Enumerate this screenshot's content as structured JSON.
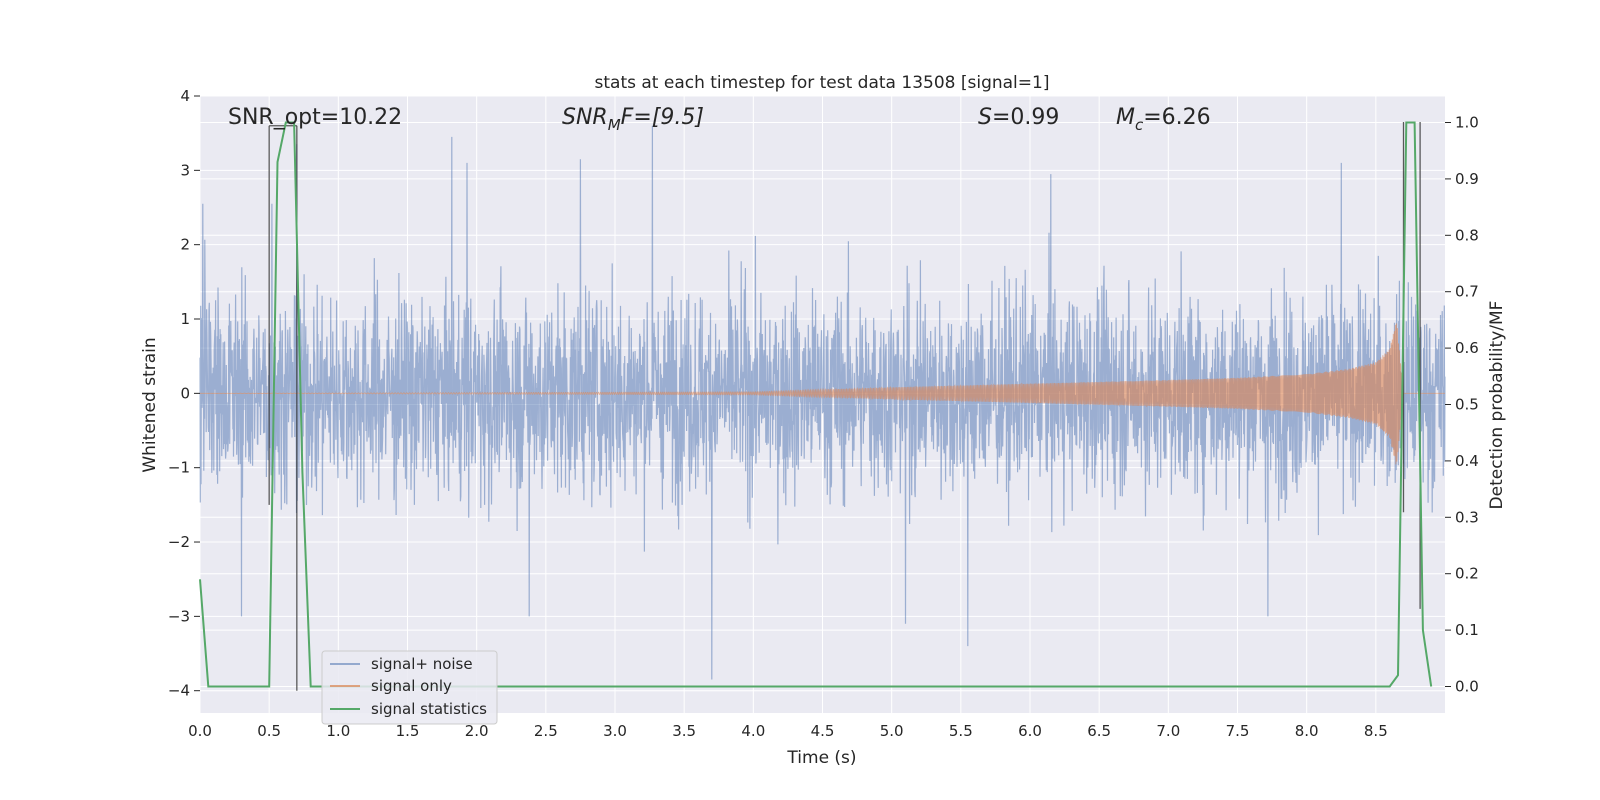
{
  "chart_data": {
    "type": "line",
    "title": "stats at each timestep for test data 13508 [signal=1]",
    "xlabel": "Time (s)",
    "ylabel": "Whitened strain",
    "y2label": "Detection probability/MF",
    "xlim": [
      0.0,
      9.0
    ],
    "ylim": [
      -4.3,
      4.0
    ],
    "y2lim": [
      -0.047,
      1.047
    ],
    "x_ticks": [
      "0.0",
      "0.5",
      "1.0",
      "1.5",
      "2.0",
      "2.5",
      "3.0",
      "3.5",
      "4.0",
      "4.5",
      "5.0",
      "5.5",
      "6.0",
      "6.5",
      "7.0",
      "7.5",
      "8.0",
      "8.5"
    ],
    "y_ticks": [
      "4",
      "3",
      "2",
      "1",
      "0",
      "−1",
      "−2",
      "−3",
      "−4"
    ],
    "y2_ticks": [
      "1.0",
      "0.9",
      "0.8",
      "0.7",
      "0.6",
      "0.5",
      "0.4",
      "0.3",
      "0.2",
      "0.1",
      "0.0"
    ],
    "grid": true,
    "legend_position": "lower-left",
    "annotations": {
      "snr_opt": "SNR_opt=10.22",
      "snr_mf_sym": "SNR",
      "snr_mf_sub": "M",
      "snr_mf_rest": "F=[9.5]",
      "s_sym": "S",
      "s_rest": "=0.99",
      "mc_sym": "M",
      "mc_sub": "c",
      "mc_rest": "=6.26"
    },
    "series": [
      {
        "name": "signal+ noise",
        "color": "#4c72b0",
        "axis": "left",
        "kind": "noise",
        "amplitude_envelope": 1.3,
        "peak_values": [
          [
            0.02,
            2.55
          ],
          [
            0.52,
            2.55
          ],
          [
            0.7,
            3.35
          ],
          [
            1.82,
            3.45
          ],
          [
            1.93,
            3.1
          ],
          [
            2.75,
            3.15
          ],
          [
            3.27,
            3.6
          ],
          [
            3.7,
            -3.85
          ],
          [
            5.1,
            -3.1
          ],
          [
            5.55,
            -3.4
          ],
          [
            6.15,
            2.95
          ],
          [
            7.72,
            -3.0
          ],
          [
            8.25,
            3.1
          ],
          [
            0.3,
            -3.0
          ],
          [
            2.38,
            -3.0
          ]
        ]
      },
      {
        "name": "signal only",
        "color": "#dd8452",
        "axis": "left",
        "kind": "chirp",
        "amplitude_x": [
          0.0,
          4.0,
          5.0,
          6.0,
          7.0,
          7.5,
          8.0,
          8.3,
          8.5,
          8.6,
          8.65,
          8.7,
          9.0
        ],
        "amplitude_y": [
          0.0,
          0.02,
          0.08,
          0.13,
          0.18,
          0.21,
          0.26,
          0.33,
          0.42,
          0.6,
          1.0,
          0.0,
          0.0
        ]
      },
      {
        "name": "signal statistics",
        "color": "#55a868",
        "axis": "right",
        "x": [
          0.0,
          0.06,
          0.12,
          0.5,
          0.56,
          0.62,
          0.68,
          0.74,
          0.8,
          8.6,
          8.66,
          8.72,
          8.78,
          8.84,
          8.9
        ],
        "y": [
          0.19,
          0.0,
          0.0,
          0.0,
          0.93,
          1.0,
          1.0,
          0.38,
          0.0,
          0.0,
          0.02,
          1.0,
          1.0,
          0.1,
          0.0
        ]
      }
    ],
    "vertical_markers": [
      {
        "x": 0.5,
        "y_top": 3.6,
        "y_bottom": -1.5
      },
      {
        "x": 0.7,
        "y_top": 3.6,
        "y_bottom": -4.0
      },
      {
        "x": 8.7,
        "y_top": 3.65,
        "y_bottom": -1.6
      },
      {
        "x": 8.82,
        "y_top": 3.65,
        "y_bottom": -2.9
      }
    ],
    "bracket": {
      "x1": 0.5,
      "x2": 0.7,
      "y": 3.6
    }
  }
}
